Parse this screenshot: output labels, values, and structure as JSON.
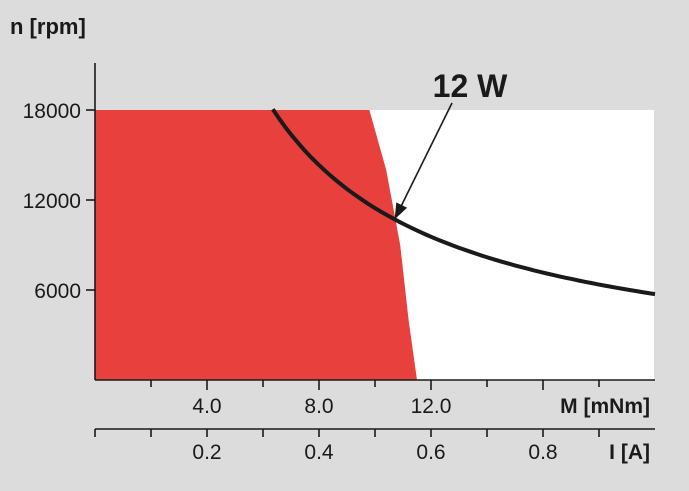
{
  "chart_data": {
    "type": "area",
    "ylabel": "n [rpm]",
    "xlabel_torque": "M [mNm]",
    "xlabel_current": "I [A]",
    "y_ticks": [
      6000,
      12000,
      18000
    ],
    "y_tick_labels": [
      "6000",
      "12000",
      "18000"
    ],
    "torque_ticks": [
      4.0,
      8.0,
      12.0,
      16.0
    ],
    "torque_tick_labels": [
      "4.0",
      "8.0",
      "12.0",
      ""
    ],
    "current_ticks": [
      0.2,
      0.4,
      0.6,
      0.8
    ],
    "current_tick_labels": [
      "0.2",
      "0.4",
      "0.6",
      "0.8"
    ],
    "torque_range": [
      0,
      20
    ],
    "current_range": [
      0,
      1.0
    ],
    "speed_range": [
      0,
      18000
    ],
    "operating_range": {
      "color": "#e8403c",
      "boundary_torque_mNm": [
        0,
        9.8,
        10.4,
        10.9,
        11.2,
        11.5
      ],
      "boundary_speed_rpm": [
        18000,
        18000,
        14000,
        9000,
        4000,
        0
      ]
    },
    "power_curve": {
      "name": "12 W",
      "color": "#1a1a1a",
      "power_W": 12,
      "torque_range_mNm": [
        6.35,
        20.0
      ]
    },
    "annotation": {
      "text": "12 W",
      "points_to_torque_mNm": 10.7
    }
  }
}
